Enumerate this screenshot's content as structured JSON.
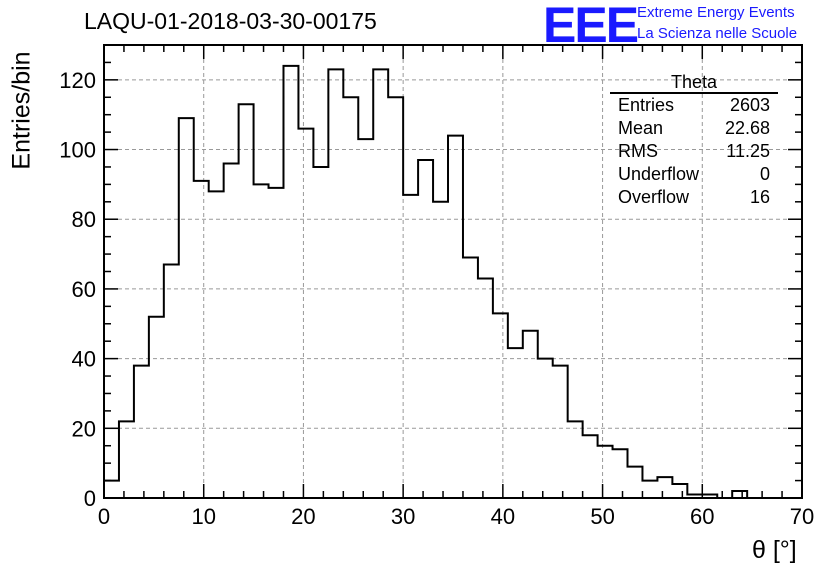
{
  "title": "LAQU-01-2018-03-30-00175",
  "logo": {
    "mark": "EEE",
    "line1": "Extreme Energy Events",
    "line2": "La Scienza nelle Scuole"
  },
  "stats": {
    "name": "Theta",
    "rows": [
      {
        "label": "Entries",
        "value": "2603"
      },
      {
        "label": "Mean",
        "value": "22.68"
      },
      {
        "label": "RMS",
        "value": "11.25"
      },
      {
        "label": "Underflow",
        "value": "0"
      },
      {
        "label": "Overflow",
        "value": "16"
      }
    ]
  },
  "chart_data": {
    "type": "histogram",
    "xlabel": "θ [°]",
    "ylabel": "Entries/bin",
    "xlim": [
      0,
      70
    ],
    "ylim": [
      0,
      130
    ],
    "bin_width": 1.5,
    "bin_start": 0,
    "grid": true,
    "x_ticks": [
      0,
      10,
      20,
      30,
      40,
      50,
      60,
      70
    ],
    "y_ticks": [
      0,
      20,
      40,
      60,
      80,
      100,
      120
    ],
    "values": [
      5,
      22,
      38,
      52,
      67,
      109,
      91,
      88,
      96,
      113,
      90,
      89,
      124,
      106,
      95,
      123,
      115,
      103,
      123,
      115,
      87,
      97,
      85,
      104,
      69,
      63,
      53,
      43,
      48,
      40,
      38,
      22,
      18,
      15,
      14,
      9,
      5,
      6,
      4,
      1,
      1,
      0,
      2,
      0,
      0,
      0,
      0
    ]
  }
}
